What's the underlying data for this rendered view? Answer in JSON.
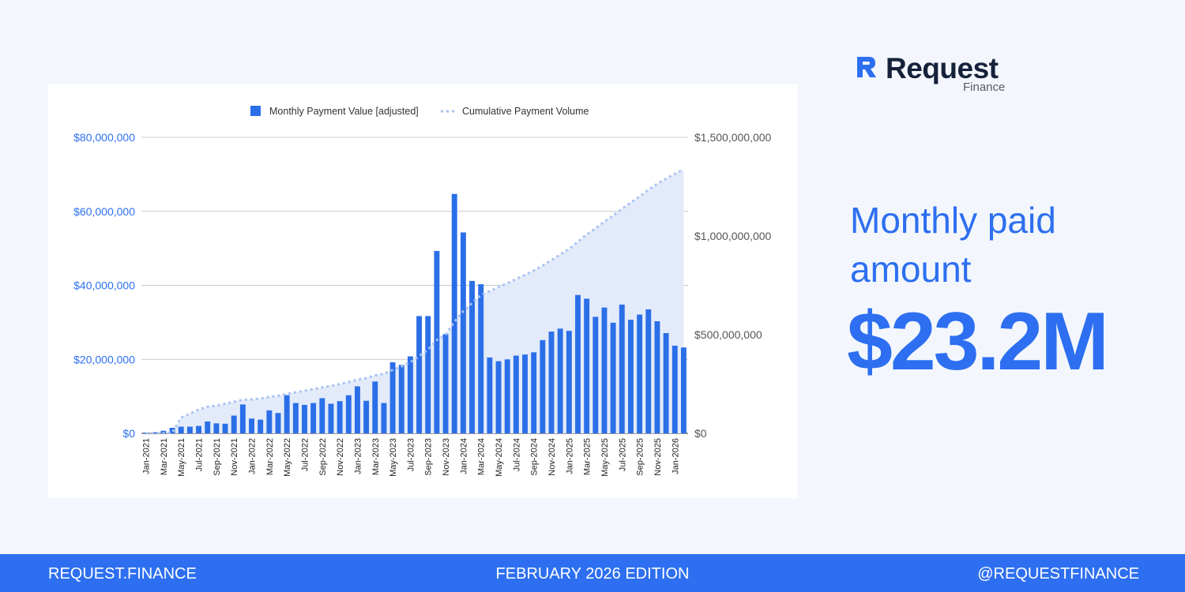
{
  "brand": {
    "name": "Request",
    "sub": "Finance"
  },
  "headline": {
    "line1": "Monthly paid",
    "line2": "amount",
    "value": "$23.2M"
  },
  "footer": {
    "left": "REQUEST.FINANCE",
    "center": "FEBRUARY 2026  EDITION",
    "right": "@REQUESTFINANCE"
  },
  "colors": {
    "accent": "#2d6ff0",
    "bar": "#2b6fe8",
    "area": "#e3ebfa",
    "cumulative_line": "#a9c2f2",
    "background": "#f3f7fd"
  },
  "chart_data": {
    "type": "bar",
    "title": "",
    "legend": [
      {
        "label": "Monthly Payment Value [adjusted]",
        "style": "bar"
      },
      {
        "label": "Cumulative Payment Volume",
        "style": "dotted-area"
      }
    ],
    "legend_position": "top-center",
    "grid": true,
    "y_left": {
      "ticks": [
        "$0",
        "$20,000,000",
        "$40,000,000",
        "$60,000,000",
        "$80,000,000"
      ],
      "range": [
        0,
        80000000
      ]
    },
    "y_right": {
      "ticks": [
        "$0",
        "$500,000,000",
        "$1,000,000,000",
        "$1,500,000,000"
      ],
      "range": [
        0,
        1500000000
      ]
    },
    "months": [
      "Jan-2021",
      "Feb-2021",
      "Mar-2021",
      "Apr-2021",
      "May-2021",
      "Jun-2021",
      "Jul-2021",
      "Aug-2021",
      "Sep-2021",
      "Oct-2021",
      "Nov-2021",
      "Dec-2021",
      "Jan-2022",
      "Feb-2022",
      "Mar-2022",
      "Apr-2022",
      "May-2022",
      "Jun-2022",
      "Jul-2022",
      "Aug-2022",
      "Sep-2022",
      "Oct-2022",
      "Nov-2022",
      "Dec-2022",
      "Jan-2023",
      "Feb-2023",
      "Mar-2023",
      "Apr-2023",
      "May-2023",
      "Jun-2023",
      "Jul-2023",
      "Aug-2023",
      "Sep-2023",
      "Oct-2023",
      "Nov-2023",
      "Dec-2023",
      "Jan-2024",
      "Feb-2024",
      "Mar-2024",
      "Apr-2024",
      "May-2024",
      "Jun-2024",
      "Jul-2024",
      "Aug-2024",
      "Sep-2024",
      "Oct-2024",
      "Nov-2024",
      "Dec-2024",
      "Jan-2025",
      "Feb-2025",
      "Mar-2025",
      "Apr-2025",
      "May-2025",
      "Jun-2025",
      "Jul-2025",
      "Aug-2025",
      "Sep-2025",
      "Oct-2025",
      "Nov-2025",
      "Dec-2025",
      "Jan-2026",
      "Feb-2026"
    ],
    "tick_labels": [
      "Jan-2021",
      "Mar-2021",
      "May-2021",
      "Jul-2021",
      "Sep-2021",
      "Nov-2021",
      "Jan-2022",
      "Mar-2022",
      "May-2022",
      "Jul-2022",
      "Sep-2022",
      "Nov-2022",
      "Jan-2023",
      "Mar-2023",
      "May-2023",
      "Jul-2023",
      "Sep-2023",
      "Nov-2023",
      "Jan-2024",
      "Mar-2024",
      "May-2024",
      "Jul-2024",
      "Sep-2024",
      "Nov-2024",
      "Jan-2025",
      "Mar-2025",
      "May-2025",
      "Jul-2025",
      "Sep-2025",
      "Nov-2025",
      "Jan-2026"
    ],
    "monthly_values": [
      200000,
      300000,
      700000,
      1500000,
      1800000,
      1800000,
      2000000,
      3200000,
      2700000,
      2600000,
      4800000,
      7800000,
      4000000,
      3700000,
      6200000,
      5500000,
      10300000,
      8200000,
      7700000,
      8200000,
      9500000,
      8000000,
      8700000,
      10300000,
      12700000,
      8800000,
      14000000,
      8200000,
      19200000,
      18500000,
      20800000,
      31700000,
      31700000,
      49300000,
      26800000,
      64700000,
      54300000,
      41200000,
      40300000,
      20500000,
      19500000,
      20000000,
      21000000,
      21300000,
      21900000,
      25200000,
      27500000,
      28300000,
      27700000,
      37400000,
      36400000,
      31500000,
      34000000,
      29900000,
      34800000,
      30700000,
      32100000,
      33500000,
      30300000,
      27100000,
      23700000,
      23200000
    ],
    "cumulative_values": [
      200000,
      500000,
      1200000,
      2700000,
      80000000,
      100000000,
      120000000,
      135000000,
      140000000,
      150000000,
      160000000,
      170000000,
      172000000,
      176000000,
      185000000,
      190000000,
      200000000,
      208000000,
      216000000,
      224000000,
      233000000,
      240000000,
      250000000,
      260000000,
      272000000,
      280000000,
      294000000,
      302000000,
      321000000,
      339000000,
      360000000,
      392000000,
      424000000,
      473000000,
      500000000,
      565000000,
      619000000,
      660000000,
      701000000,
      721000000,
      741000000,
      761000000,
      782000000,
      803000000,
      825000000,
      850000000,
      878000000,
      906000000,
      934000000,
      971000000,
      1008000000,
      1039000000,
      1073000000,
      1103000000,
      1138000000,
      1169000000,
      1201000000,
      1234000000,
      1264000000,
      1291000000,
      1315000000,
      1338000000
    ]
  }
}
